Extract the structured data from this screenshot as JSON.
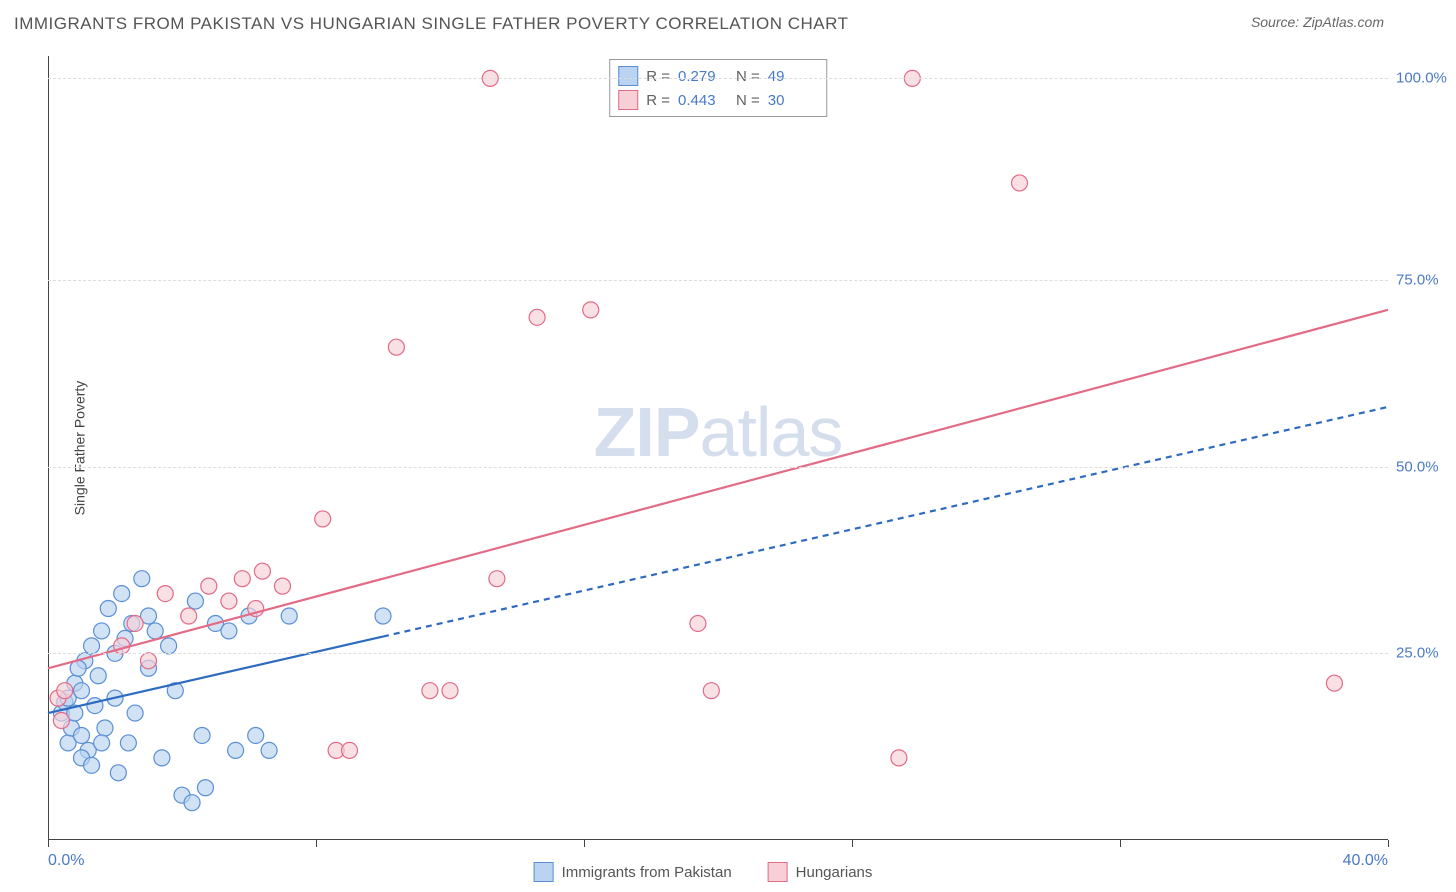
{
  "header": {
    "title": "IMMIGRANTS FROM PAKISTAN VS HUNGARIAN SINGLE FATHER POVERTY CORRELATION CHART",
    "source_prefix": "Source: ",
    "source_name": "ZipAtlas.com"
  },
  "chart": {
    "type": "scatter",
    "y_axis_label": "Single Father Poverty",
    "xlim": [
      0,
      40
    ],
    "ylim": [
      0,
      105
    ],
    "x_ticks": [
      0,
      8,
      16,
      24,
      32,
      40
    ],
    "x_tick_labels": {
      "0": "0.0%",
      "40": "40.0%"
    },
    "y_gridlines": [
      25,
      50,
      75,
      102
    ],
    "y_tick_labels": {
      "25": "25.0%",
      "50": "50.0%",
      "75": "75.0%",
      "102": "100.0%"
    },
    "grid_color": "#dddddd",
    "axis_color": "#444444",
    "tick_label_color": "#4a7ac7",
    "background_color": "#ffffff",
    "marker_radius": 8,
    "marker_stroke_width": 1.2,
    "trend_line_width": 2.2,
    "watermark": {
      "zip": "ZIP",
      "atlas": "atlas",
      "color": "#c8d4e6"
    },
    "series": [
      {
        "key": "pakistan",
        "label": "Immigrants from Pakistan",
        "fill": "#b9d3f0",
        "stroke": "#5a8fd6",
        "line_color": "#2e6bc0",
        "line_dash": "6,5",
        "R": "0.279",
        "N": "49",
        "trend": {
          "x1": 0,
          "y1": 17,
          "x2": 40,
          "y2": 58,
          "solid_until_x": 10
        },
        "points": [
          [
            0.4,
            17
          ],
          [
            0.5,
            18.5
          ],
          [
            0.6,
            13
          ],
          [
            0.6,
            19
          ],
          [
            0.7,
            15
          ],
          [
            0.8,
            21
          ],
          [
            0.8,
            17
          ],
          [
            1.0,
            14
          ],
          [
            1.0,
            20
          ],
          [
            1.1,
            24
          ],
          [
            1.2,
            12
          ],
          [
            1.3,
            26
          ],
          [
            1.4,
            18
          ],
          [
            1.5,
            22
          ],
          [
            1.6,
            28
          ],
          [
            1.7,
            15
          ],
          [
            1.8,
            31
          ],
          [
            2.0,
            25
          ],
          [
            2.0,
            19
          ],
          [
            2.2,
            33
          ],
          [
            2.3,
            27
          ],
          [
            2.4,
            13
          ],
          [
            2.5,
            29
          ],
          [
            2.6,
            17
          ],
          [
            2.8,
            35
          ],
          [
            3.0,
            23
          ],
          [
            3.0,
            30
          ],
          [
            3.2,
            28
          ],
          [
            3.4,
            11
          ],
          [
            3.6,
            26
          ],
          [
            3.8,
            20
          ],
          [
            4.0,
            6
          ],
          [
            4.3,
            5
          ],
          [
            4.4,
            32
          ],
          [
            4.6,
            14
          ],
          [
            4.7,
            7
          ],
          [
            5.0,
            29
          ],
          [
            5.4,
            28
          ],
          [
            5.6,
            12
          ],
          [
            6.0,
            30
          ],
          [
            6.2,
            14
          ],
          [
            6.6,
            12
          ],
          [
            7.2,
            30
          ],
          [
            1.0,
            11
          ],
          [
            1.3,
            10
          ],
          [
            2.1,
            9
          ],
          [
            1.6,
            13
          ],
          [
            0.9,
            23
          ],
          [
            10.0,
            30
          ]
        ]
      },
      {
        "key": "hungarians",
        "label": "Hungarians",
        "fill": "#f6cfd7",
        "stroke": "#e26b86",
        "line_color": "#e26b86",
        "line_dash": "",
        "R": "0.443",
        "N": "30",
        "trend": {
          "x1": 0,
          "y1": 23,
          "x2": 40,
          "y2": 71
        },
        "points": [
          [
            0.3,
            19
          ],
          [
            0.4,
            16
          ],
          [
            0.5,
            20
          ],
          [
            3.5,
            33
          ],
          [
            4.2,
            30
          ],
          [
            4.8,
            34
          ],
          [
            5.4,
            32
          ],
          [
            5.8,
            35
          ],
          [
            6.2,
            31
          ],
          [
            6.4,
            36
          ],
          [
            7.0,
            34
          ],
          [
            8.2,
            43
          ],
          [
            8.6,
            12
          ],
          [
            9.0,
            12
          ],
          [
            10.4,
            66
          ],
          [
            11.4,
            20
          ],
          [
            12.0,
            20
          ],
          [
            13.4,
            35
          ],
          [
            13.2,
            102
          ],
          [
            14.6,
            70
          ],
          [
            16.2,
            71
          ],
          [
            19.4,
            29
          ],
          [
            19.8,
            20
          ],
          [
            25.4,
            11
          ],
          [
            25.8,
            102
          ],
          [
            29.0,
            88
          ],
          [
            38.4,
            21
          ],
          [
            2.2,
            26
          ],
          [
            2.6,
            29
          ],
          [
            3.0,
            24
          ]
        ]
      }
    ]
  },
  "legend_corr": {
    "r_label": "R =",
    "n_label": "N ="
  },
  "bottom_legend": {
    "items": [
      {
        "key": "pakistan"
      },
      {
        "key": "hungarians"
      }
    ]
  }
}
